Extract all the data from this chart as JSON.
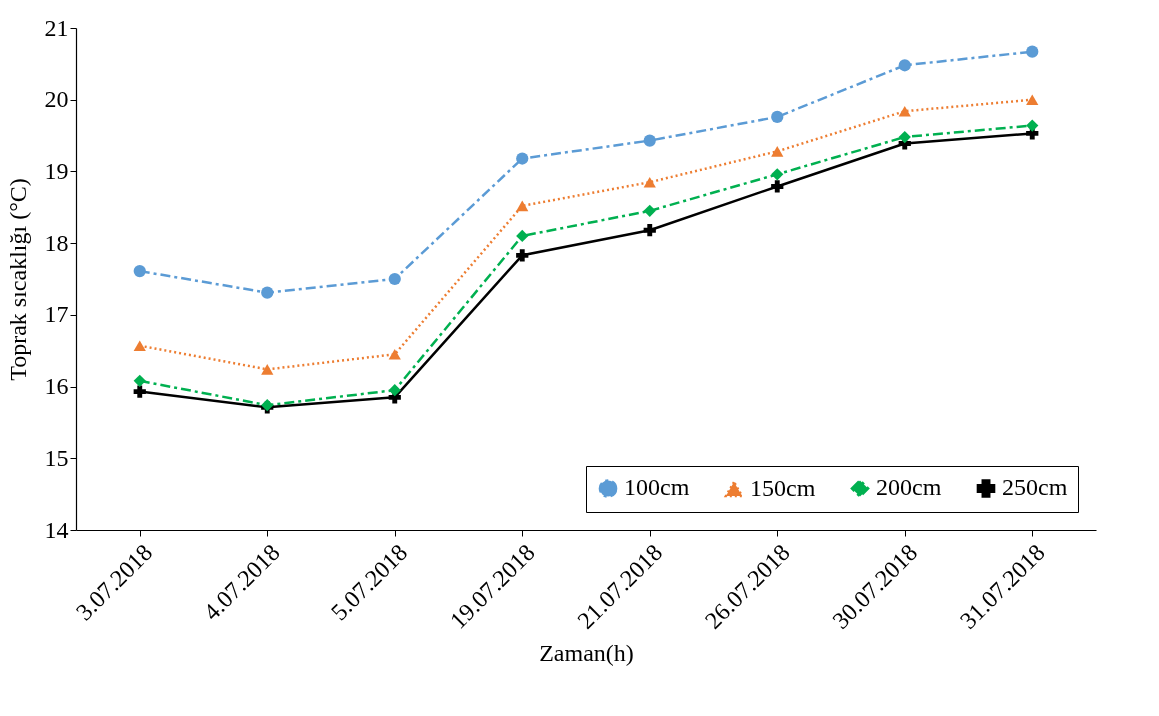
{
  "chart_data": {
    "type": "line",
    "xlabel": "Zaman(h)",
    "ylabel": "Toprak sıcaklığı (°C)",
    "categories": [
      "3.07.2018",
      "4.07.2018",
      "5.07.2018",
      "19.07.2018",
      "21.07.2018",
      "26.07.2018",
      "30.07.2018",
      "31.07.2018"
    ],
    "series": [
      {
        "name": "100cm",
        "color": "#5b9bd5",
        "marker": "circle",
        "line_style": "dashed",
        "values": [
          17.61,
          17.31,
          17.5,
          19.18,
          19.43,
          19.76,
          20.48,
          20.67
        ]
      },
      {
        "name": "150cm",
        "color": "#ed7d31",
        "marker": "triangle",
        "line_style": "dotted",
        "values": [
          16.57,
          16.24,
          16.45,
          18.52,
          18.85,
          19.28,
          19.84,
          20.0
        ]
      },
      {
        "name": "200cm",
        "color": "#00b050",
        "marker": "diamond",
        "line_style": "dashed",
        "values": [
          16.08,
          15.74,
          15.95,
          18.1,
          18.45,
          18.96,
          19.48,
          19.64
        ]
      },
      {
        "name": "250cm",
        "color": "#000000",
        "marker": "cross",
        "line_style": "solid",
        "values": [
          15.93,
          15.71,
          15.85,
          17.83,
          18.18,
          18.79,
          19.39,
          19.53
        ]
      }
    ],
    "ylim": [
      14,
      21
    ],
    "yticks": [
      14,
      15,
      16,
      17,
      18,
      19,
      20,
      21
    ],
    "grid": false,
    "legend": "bottom right"
  }
}
